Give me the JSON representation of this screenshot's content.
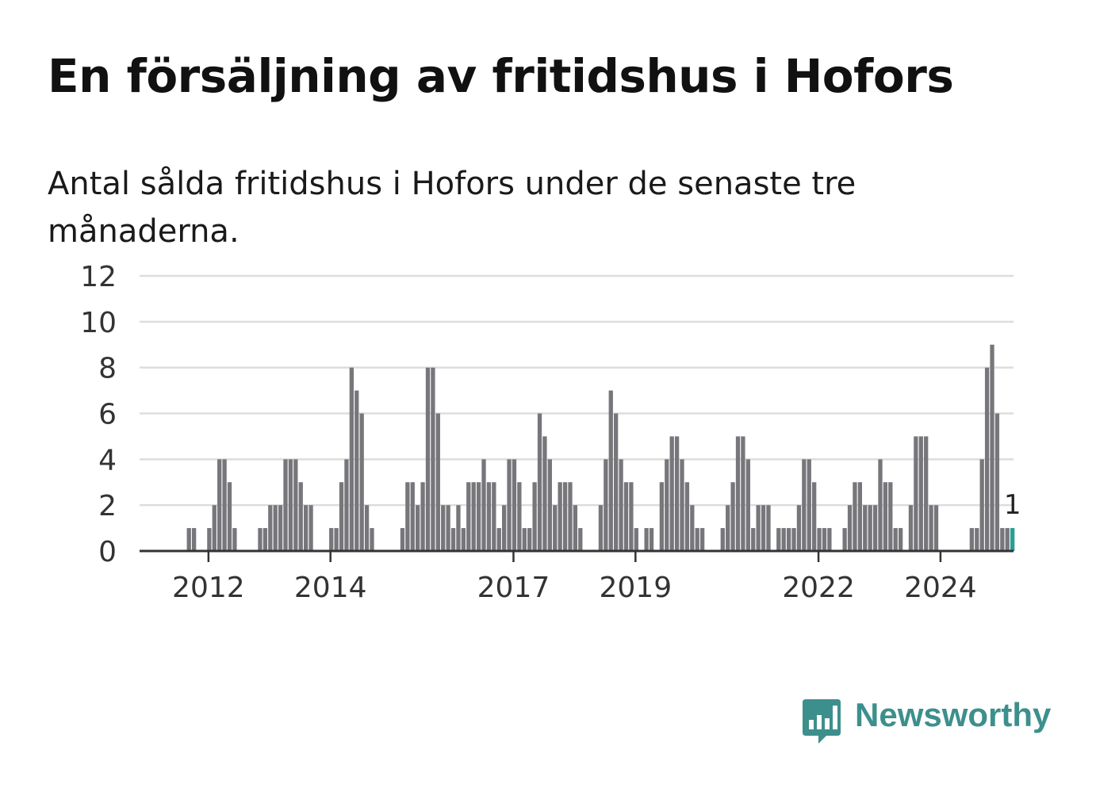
{
  "title": "En försäljning av fritidshus i Hofors",
  "subtitle": "Antal sålda fritidshus i Hofors under de senaste tre månaderna.",
  "brand": {
    "name": "Newsworthy",
    "color": "#3d8f8c",
    "icon": "bar-chart-speech-bubble-icon"
  },
  "colors": {
    "bar": "#77767b",
    "highlight": "#2a9d96",
    "grid": "#dddddd",
    "axis": "#333333"
  },
  "chart_data": {
    "type": "bar",
    "ylim": [
      0,
      12
    ],
    "y_ticks": [
      0,
      2,
      4,
      6,
      8,
      10,
      12
    ],
    "x_ticks": [
      "2012",
      "2014",
      "2017",
      "2019",
      "2022",
      "2024"
    ],
    "grid": true,
    "highlight_last": true,
    "last_value_label": "1",
    "values": [
      0,
      0,
      0,
      0,
      0,
      0,
      0,
      0,
      1,
      1,
      0,
      0,
      1,
      2,
      4,
      4,
      3,
      1,
      0,
      0,
      0,
      0,
      1,
      1,
      2,
      2,
      2,
      4,
      4,
      4,
      3,
      2,
      2,
      0,
      0,
      0,
      1,
      1,
      3,
      4,
      8,
      7,
      6,
      2,
      1,
      0,
      0,
      0,
      0,
      0,
      1,
      3,
      3,
      2,
      3,
      8,
      8,
      6,
      2,
      2,
      1,
      2,
      1,
      3,
      3,
      3,
      4,
      3,
      3,
      1,
      2,
      4,
      4,
      3,
      1,
      1,
      3,
      6,
      5,
      4,
      2,
      3,
      3,
      3,
      2,
      1,
      0,
      0,
      0,
      2,
      4,
      7,
      6,
      4,
      3,
      3,
      1,
      0,
      1,
      1,
      0,
      3,
      4,
      5,
      5,
      4,
      3,
      2,
      1,
      1,
      0,
      0,
      0,
      1,
      2,
      3,
      5,
      5,
      4,
      1,
      2,
      2,
      2,
      0,
      1,
      1,
      1,
      1,
      2,
      4,
      4,
      3,
      1,
      1,
      1,
      0,
      0,
      1,
      2,
      3,
      3,
      2,
      2,
      2,
      4,
      3,
      3,
      1,
      1,
      0,
      2,
      5,
      5,
      5,
      2,
      2,
      0,
      0,
      0,
      0,
      0,
      0,
      1,
      1,
      4,
      8,
      9,
      6,
      1,
      1,
      1
    ]
  }
}
